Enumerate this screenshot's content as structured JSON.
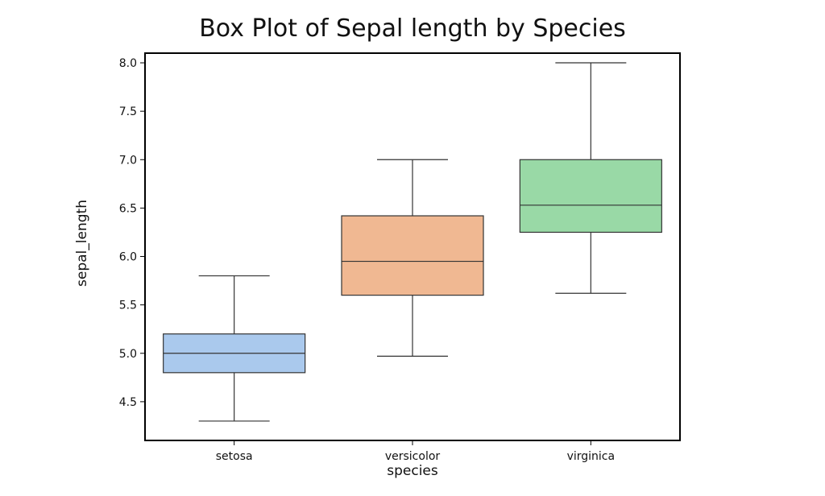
{
  "chart_data": {
    "type": "box",
    "title": "Box Plot of Sepal length by Species",
    "xlabel": "species",
    "ylabel": "sepal_length",
    "ylim": [
      4.1,
      8.1
    ],
    "yticks": [
      "4.5",
      "5.0",
      "5.5",
      "6.0",
      "6.5",
      "7.0",
      "7.5",
      "8.0"
    ],
    "grid": false,
    "categories": [
      "setosa",
      "versicolor",
      "virginica"
    ],
    "series": [
      {
        "category": "setosa",
        "min": 4.3,
        "q1": 4.8,
        "median": 5.0,
        "q3": 5.2,
        "max": 5.8,
        "color": "#aac9ed"
      },
      {
        "category": "versicolor",
        "min": 4.97,
        "q1": 5.6,
        "median": 5.95,
        "q3": 6.42,
        "max": 7.0,
        "color": "#f0b892"
      },
      {
        "category": "virginica",
        "min": 5.62,
        "q1": 6.25,
        "median": 6.53,
        "q3": 7.0,
        "max": 8.0,
        "color": "#99d9a6"
      }
    ]
  }
}
